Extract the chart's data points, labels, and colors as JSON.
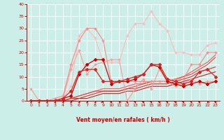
{
  "xlabel": "Vent moyen/en rafales ( km/h )",
  "xlim": [
    -0.5,
    23.5
  ],
  "ylim": [
    0,
    40
  ],
  "xticks": [
    0,
    1,
    2,
    3,
    4,
    5,
    6,
    7,
    8,
    9,
    10,
    11,
    12,
    13,
    14,
    15,
    16,
    17,
    18,
    19,
    20,
    21,
    22,
    23
  ],
  "yticks": [
    0,
    5,
    10,
    15,
    20,
    25,
    30,
    35,
    40
  ],
  "bg_color": "#cceee8",
  "grid_color": "#aadddd",
  "series": [
    {
      "x": [
        0,
        1,
        2,
        3,
        4,
        5,
        6,
        7,
        8,
        9,
        10,
        11,
        12,
        13,
        14,
        15,
        16,
        17,
        18,
        19,
        20,
        21,
        22,
        23
      ],
      "y": [
        5,
        0,
        0,
        0,
        1,
        13,
        21,
        11,
        15,
        16,
        17,
        17,
        0,
        5,
        9,
        5,
        13,
        8,
        6,
        7,
        9,
        7,
        8,
        8
      ],
      "color": "#ff9999",
      "marker": "+",
      "markersize": 3.5,
      "linewidth": 0.8,
      "alpha": 1.0,
      "light": true
    },
    {
      "x": [
        0,
        1,
        2,
        3,
        4,
        5,
        6,
        7,
        8,
        9,
        10,
        11,
        12,
        13,
        14,
        15,
        16,
        17,
        18,
        19,
        20,
        21,
        22,
        23
      ],
      "y": [
        0,
        0,
        0,
        0,
        1,
        6,
        27,
        30,
        26,
        16,
        16,
        16,
        27,
        32,
        32,
        37,
        32,
        29,
        20,
        20,
        19,
        19,
        23,
        24
      ],
      "color": "#ffbbbb",
      "marker": "+",
      "markersize": 3.0,
      "linewidth": 0.8,
      "alpha": 1.0,
      "light": true
    },
    {
      "x": [
        0,
        1,
        2,
        3,
        4,
        5,
        6,
        7,
        8,
        9,
        10,
        11,
        12,
        13,
        14,
        15,
        16,
        17,
        18,
        19,
        20,
        21,
        22,
        23
      ],
      "y": [
        0,
        0,
        0,
        1,
        2,
        15,
        25,
        30,
        30,
        25,
        8,
        8,
        8,
        8,
        8,
        8,
        8,
        8,
        9,
        9,
        15,
        15,
        20,
        20
      ],
      "color": "#ff8888",
      "marker": "+",
      "markersize": 3.0,
      "linewidth": 0.8,
      "alpha": 1.0,
      "light": true
    },
    {
      "x": [
        0,
        1,
        2,
        3,
        4,
        5,
        6,
        7,
        8,
        9,
        10,
        11,
        12,
        13,
        14,
        15,
        16,
        17,
        18,
        19,
        20,
        21,
        22,
        23
      ],
      "y": [
        0,
        0,
        0,
        0,
        1,
        2,
        11,
        15,
        17,
        17,
        7,
        8,
        8,
        9,
        11,
        15,
        14,
        8,
        7,
        6,
        7,
        8,
        7,
        8
      ],
      "color": "#cc0000",
      "marker": "D",
      "markersize": 2.0,
      "linewidth": 0.9,
      "alpha": 1.0,
      "light": false
    },
    {
      "x": [
        0,
        1,
        2,
        3,
        4,
        5,
        6,
        7,
        8,
        9,
        10,
        11,
        12,
        13,
        14,
        15,
        16,
        17,
        18,
        19,
        20,
        21,
        22,
        23
      ],
      "y": [
        0,
        0,
        0,
        0,
        1,
        4,
        12,
        13,
        13,
        8,
        8,
        8,
        9,
        10,
        11,
        15,
        15,
        9,
        8,
        7,
        8,
        12,
        13,
        10
      ],
      "color": "#dd2222",
      "marker": "D",
      "markersize": 2.0,
      "linewidth": 0.9,
      "alpha": 1.0,
      "light": false
    },
    {
      "x": [
        0,
        1,
        2,
        3,
        4,
        5,
        6,
        7,
        8,
        9,
        10,
        11,
        12,
        13,
        14,
        15,
        16,
        17,
        18,
        19,
        20,
        21,
        22,
        23
      ],
      "y": [
        0,
        0,
        0,
        0,
        0,
        1,
        2,
        3,
        4,
        5,
        5,
        5,
        6,
        7,
        7,
        8,
        8,
        8,
        9,
        10,
        12,
        14,
        16,
        19
      ],
      "color": "#ff5555",
      "marker": null,
      "markersize": 0,
      "linewidth": 0.8,
      "alpha": 1.0,
      "light": false
    },
    {
      "x": [
        0,
        1,
        2,
        3,
        4,
        5,
        6,
        7,
        8,
        9,
        10,
        11,
        12,
        13,
        14,
        15,
        16,
        17,
        18,
        19,
        20,
        21,
        22,
        23
      ],
      "y": [
        0,
        0,
        0,
        0,
        0,
        1,
        2,
        3,
        4,
        4,
        4,
        4,
        5,
        6,
        7,
        8,
        8,
        8,
        9,
        10,
        11,
        13,
        15,
        18
      ],
      "color": "#ee4444",
      "marker": null,
      "markersize": 0,
      "linewidth": 0.8,
      "alpha": 1.0,
      "light": false
    },
    {
      "x": [
        0,
        1,
        2,
        3,
        4,
        5,
        6,
        7,
        8,
        9,
        10,
        11,
        12,
        13,
        14,
        15,
        16,
        17,
        18,
        19,
        20,
        21,
        22,
        23
      ],
      "y": [
        0,
        0,
        0,
        0,
        0,
        1,
        1,
        2,
        3,
        4,
        4,
        4,
        5,
        5,
        6,
        7,
        7,
        7,
        8,
        9,
        10,
        12,
        13,
        14
      ],
      "color": "#dd3333",
      "marker": null,
      "markersize": 0,
      "linewidth": 0.8,
      "alpha": 1.0,
      "light": false
    },
    {
      "x": [
        0,
        1,
        2,
        3,
        4,
        5,
        6,
        7,
        8,
        9,
        10,
        11,
        12,
        13,
        14,
        15,
        16,
        17,
        18,
        19,
        20,
        21,
        22,
        23
      ],
      "y": [
        0,
        0,
        0,
        0,
        0,
        0,
        1,
        1,
        2,
        3,
        3,
        3,
        4,
        4,
        5,
        6,
        6,
        6,
        7,
        8,
        9,
        10,
        11,
        12
      ],
      "color": "#cc2222",
      "marker": null,
      "markersize": 0,
      "linewidth": 0.8,
      "alpha": 1.0,
      "light": false
    }
  ],
  "wind_dirs": [
    135,
    45,
    45,
    45,
    45,
    45,
    45,
    45,
    45,
    90,
    315,
    270,
    225,
    225,
    225,
    225,
    225,
    225,
    225,
    225,
    225,
    225,
    270,
    225
  ]
}
